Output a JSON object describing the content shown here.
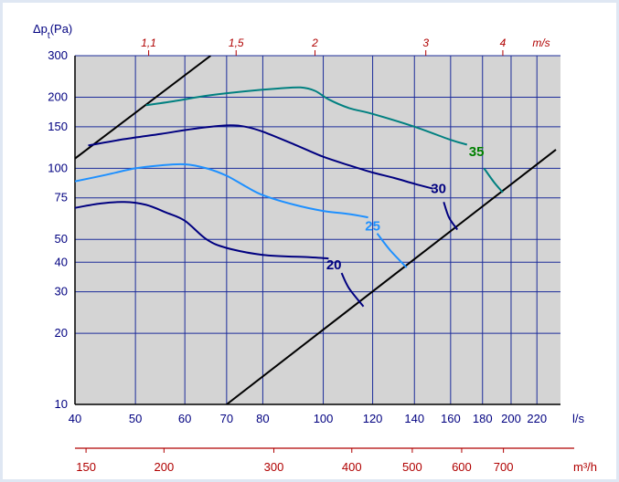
{
  "chart_data": {
    "type": "line",
    "ylabel_prefix": "Δp",
    "ylabel_sub": "t",
    "ylabel_suffix": "(Pa)",
    "y_scale": "log",
    "x_scale": "log",
    "xlim": [
      40,
      240
    ],
    "ylim": [
      10,
      300
    ],
    "grid": true,
    "y_ticks": [
      10,
      20,
      30,
      40,
      50,
      75,
      100,
      150,
      200,
      300
    ],
    "x_ticks": [
      40,
      50,
      60,
      70,
      80,
      100,
      120,
      140,
      160,
      180,
      200,
      220
    ],
    "x_unit": "l/s",
    "velocity_axis": {
      "unit": "m/s",
      "ticks": [
        {
          "label": "1,1",
          "x": 52.5
        },
        {
          "label": "1,5",
          "x": 72.5
        },
        {
          "label": "2",
          "x": 97
        },
        {
          "label": "3",
          "x": 146
        },
        {
          "label": "4",
          "x": 194
        }
      ]
    },
    "flow_axis": {
      "unit": "m³/h",
      "ticks": [
        150,
        200,
        300,
        400,
        500,
        600,
        700
      ]
    },
    "series": [
      {
        "name": "20",
        "color": "#000080",
        "points": [
          [
            40,
            68
          ],
          [
            44,
            71
          ],
          [
            48,
            72
          ],
          [
            52,
            70
          ],
          [
            56,
            65
          ],
          [
            60,
            60
          ],
          [
            65,
            50
          ],
          [
            70,
            46
          ],
          [
            80,
            43
          ],
          [
            95,
            42
          ],
          [
            102,
            41.5
          ]
        ]
      },
      {
        "name": "25",
        "color": "#1e90ff",
        "points": [
          [
            40,
            88
          ],
          [
            45,
            94
          ],
          [
            50,
            100
          ],
          [
            55,
            103
          ],
          [
            60,
            104
          ],
          [
            65,
            100
          ],
          [
            70,
            93
          ],
          [
            75,
            84
          ],
          [
            80,
            77
          ],
          [
            90,
            70
          ],
          [
            100,
            66
          ],
          [
            110,
            64
          ],
          [
            118,
            62
          ]
        ]
      },
      {
        "name": "30",
        "color": "#000080",
        "points": [
          [
            42,
            125
          ],
          [
            48,
            133
          ],
          [
            55,
            140
          ],
          [
            62,
            147
          ],
          [
            70,
            152
          ],
          [
            75,
            150
          ],
          [
            80,
            143
          ],
          [
            90,
            126
          ],
          [
            100,
            112
          ],
          [
            110,
            103
          ],
          [
            120,
            96
          ],
          [
            130,
            91
          ],
          [
            140,
            86
          ],
          [
            150,
            82
          ]
        ]
      },
      {
        "name": "35",
        "color": "#008080",
        "points": [
          [
            52,
            185
          ],
          [
            58,
            193
          ],
          [
            65,
            203
          ],
          [
            75,
            212
          ],
          [
            85,
            218
          ],
          [
            92,
            220
          ],
          [
            97,
            213
          ],
          [
            102,
            196
          ],
          [
            110,
            180
          ],
          [
            120,
            170
          ],
          [
            140,
            150
          ],
          [
            160,
            132
          ],
          [
            170,
            126
          ]
        ]
      }
    ],
    "curve_tails": [
      {
        "series": "20",
        "points": [
          [
            107,
            36
          ],
          [
            110,
            31
          ],
          [
            116,
            26
          ]
        ]
      },
      {
        "series": "25",
        "points": [
          [
            122,
            53
          ],
          [
            128,
            45
          ],
          [
            136,
            38
          ]
        ]
      },
      {
        "series": "30",
        "points": [
          [
            156,
            72
          ],
          [
            159,
            62
          ],
          [
            164,
            55
          ]
        ]
      },
      {
        "series": "35",
        "points": [
          [
            181,
            100
          ],
          [
            188,
            87
          ],
          [
            194,
            79
          ]
        ]
      }
    ],
    "limit_lines": [
      {
        "points": [
          [
            40,
            110
          ],
          [
            66,
            300
          ]
        ]
      },
      {
        "points": [
          [
            70,
            10
          ],
          [
            236,
            120
          ]
        ]
      }
    ],
    "curve_labels": [
      {
        "text": "20",
        "x": 104,
        "y": 39,
        "color": "#000080"
      },
      {
        "text": "25",
        "x": 120,
        "y": 57,
        "color": "#1e90ff"
      },
      {
        "text": "30",
        "x": 153,
        "y": 82,
        "color": "#000080"
      },
      {
        "text": "35",
        "x": 176,
        "y": 118,
        "color": "#008000"
      }
    ]
  }
}
